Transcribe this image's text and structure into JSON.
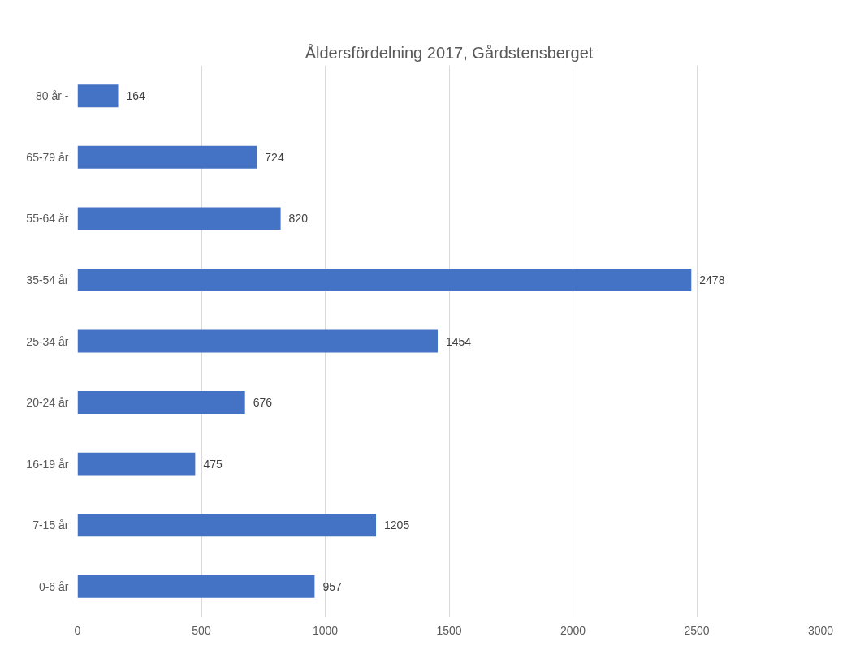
{
  "chart_data": {
    "type": "bar",
    "orientation": "horizontal",
    "title": "Åldersfördelning 2017, Gårdstensberget",
    "categories": [
      "80 år -",
      "65-79 år",
      "55-64 år",
      "35-54 år",
      "25-34 år",
      "20-24 år",
      "16-19 år",
      "7-15 år",
      "0-6 år"
    ],
    "values": [
      164,
      724,
      820,
      2478,
      1454,
      676,
      475,
      1205,
      957
    ],
    "color": "#4472c4",
    "xlim": [
      0,
      3000
    ],
    "xticks": [
      0,
      500,
      1000,
      1500,
      2000,
      2500,
      3000
    ],
    "grid": "x",
    "data_labels": true
  }
}
